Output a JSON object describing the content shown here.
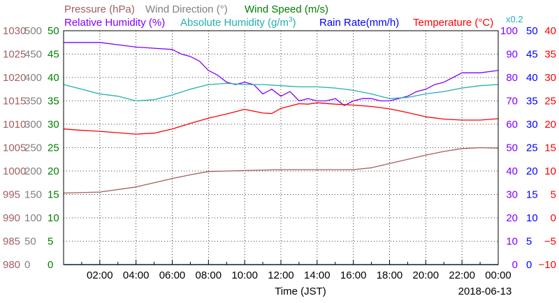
{
  "chart_data": {
    "type": "line",
    "xlabel": "Time (JST)",
    "date_label": "2018-06-13",
    "x_ticks": [
      "02:00",
      "04:00",
      "06:00",
      "08:00",
      "10:00",
      "12:00",
      "14:00",
      "16:00",
      "18:00",
      "20:00",
      "22:00",
      "00:00"
    ],
    "x_range_hours": [
      0,
      24
    ],
    "grid": true,
    "legend": {
      "pressure": "Pressure (hPa)",
      "wind_direction": "Wind Direction (°)",
      "wind_speed": "Wind Speed (m/s)",
      "relative_humidity": "Relative Humidity (%)",
      "absolute_humidity_pre": "Absolute Humidity (g/m",
      "absolute_humidity_sup": "3",
      "absolute_humidity_post": ")",
      "rain_rate": "Rain Rate(mm/h)",
      "temperature": "Temperature (°C)",
      "scale_note": "x0.2"
    },
    "axes": {
      "pressure": {
        "range": [
          980,
          1030
        ],
        "ticks": [
          "1030",
          "1025",
          "1020",
          "1015",
          "1010",
          "1005",
          "1000",
          "995",
          "990",
          "985",
          "980"
        ],
        "color": "#a06060"
      },
      "wind_direction": {
        "range": [
          0,
          500
        ],
        "ticks": [
          "500",
          "450",
          "400",
          "350",
          "300",
          "250",
          "200",
          "150",
          "100",
          "50",
          "0"
        ],
        "color": "#808080"
      },
      "wind_speed": {
        "range": [
          0,
          50
        ],
        "ticks": [
          "50",
          "45",
          "40",
          "35",
          "30",
          "25",
          "20",
          "15",
          "10",
          "5",
          "0"
        ],
        "color": "#008000"
      },
      "relative_humidity": {
        "range": [
          0,
          100
        ],
        "ticks": [
          "100",
          "90",
          "80",
          "70",
          "60",
          "50",
          "40",
          "30",
          "20",
          "10",
          "0"
        ],
        "color": "#8000ff"
      },
      "rain_rate": {
        "range": [
          0,
          50
        ],
        "ticks": [
          "50",
          "45",
          "40",
          "35",
          "30",
          "25",
          "20",
          "15",
          "10",
          "5",
          "0"
        ],
        "color": "#0000ff"
      },
      "temperature": {
        "range": [
          -10,
          40
        ],
        "ticks": [
          "40",
          "35",
          "30",
          "25",
          "20",
          "15",
          "10",
          "5",
          "0",
          "−5",
          "−10"
        ],
        "color": "#ff0000"
      }
    },
    "series": [
      {
        "name": "Pressure (hPa)",
        "color": "#a06060",
        "axis": "pressure",
        "x": [
          0,
          2,
          4,
          6,
          7,
          8,
          9,
          10,
          12,
          14,
          16,
          17,
          18,
          19,
          20,
          21,
          22,
          23,
          24
        ],
        "y": [
          995.3,
          995.5,
          996.6,
          998.4,
          999.2,
          999.9,
          1000.0,
          1000.1,
          1000.3,
          1000.3,
          1000.3,
          1000.7,
          1001.6,
          1002.5,
          1003.4,
          1004.2,
          1004.8,
          1005.0,
          1004.9
        ]
      },
      {
        "name": "Relative Humidity (%)",
        "color": "#8000ff",
        "axis": "relative_humidity",
        "x": [
          0,
          1,
          2,
          3,
          4,
          5,
          6,
          6.5,
          7,
          7.5,
          8,
          8.5,
          9,
          9.5,
          10,
          10.5,
          11,
          11.5,
          12,
          12.5,
          13,
          13.5,
          14,
          14.5,
          15,
          15.5,
          16,
          16.5,
          17,
          17.5,
          18,
          18.5,
          19,
          19.5,
          20,
          20.5,
          21,
          21.5,
          22,
          23,
          24
        ],
        "y": [
          95,
          95,
          95,
          94,
          93,
          92.5,
          92,
          90,
          89,
          87,
          83,
          81,
          78,
          77,
          78,
          77,
          73,
          75,
          72,
          74,
          70,
          71,
          70,
          70,
          71,
          68,
          70,
          71,
          71,
          70,
          70,
          71,
          72,
          74,
          75,
          77,
          78,
          80,
          82,
          82,
          83
        ]
      },
      {
        "name": "Absolute Humidity (g/m3)",
        "color": "#20b0b0",
        "axis": "relative_humidity",
        "x": [
          0,
          1,
          2,
          3,
          4,
          5,
          6,
          7,
          8,
          9,
          10,
          11,
          12,
          13,
          14,
          15,
          16,
          17,
          18,
          19,
          20,
          21,
          22,
          23,
          24
        ],
        "y": [
          77,
          75,
          73,
          72,
          70,
          70.5,
          72.5,
          75,
          77,
          77.5,
          77,
          77,
          76.5,
          76,
          76,
          75.5,
          74.5,
          73,
          71,
          71.5,
          73,
          74,
          75.5,
          76.5,
          77
        ]
      },
      {
        "name": "Temperature (°C)",
        "color": "#ff0000",
        "axis": "temperature",
        "x": [
          0,
          1,
          2,
          3,
          4,
          5,
          6,
          7,
          8,
          9,
          10,
          10.5,
          11,
          11.5,
          12,
          12.5,
          13,
          13.5,
          14,
          15,
          16,
          17,
          18,
          19,
          20,
          21,
          22,
          23,
          24
        ],
        "y": [
          19.0,
          18.7,
          18.5,
          18.2,
          17.9,
          18.1,
          19.0,
          20.2,
          21.3,
          22.2,
          23.2,
          22.8,
          22.4,
          22.3,
          23.4,
          23.9,
          24.4,
          24.3,
          24.6,
          24.3,
          24.1,
          23.8,
          23.3,
          22.5,
          21.6,
          21.1,
          20.9,
          20.9,
          21.2
        ]
      },
      {
        "name": "Rain Rate(mm/h)",
        "color": "#0000ff",
        "axis": "rain_rate",
        "x": [
          0,
          24
        ],
        "y": [
          0,
          0
        ]
      },
      {
        "name": "Wind Speed (m/s)",
        "color": "#008000",
        "axis": "wind_speed",
        "x": [
          0,
          24
        ],
        "y": [
          0,
          0
        ]
      }
    ]
  }
}
